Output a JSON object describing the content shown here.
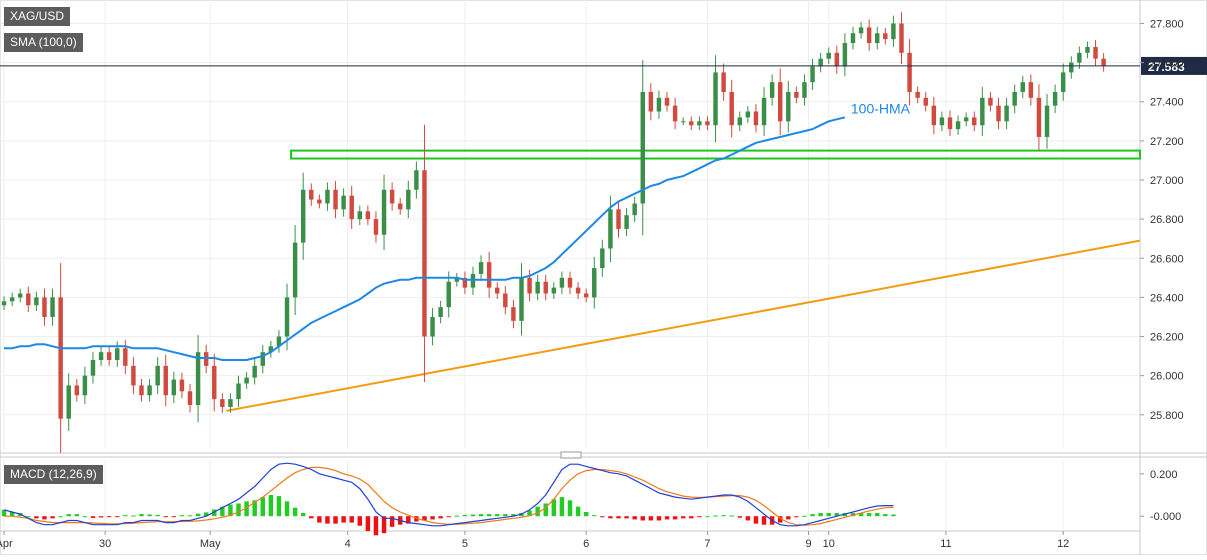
{
  "chart_data": {
    "type": "candlestick",
    "symbol": "XAG/USD",
    "indicator_label": "SMA (100,0)",
    "price_tag": "27.583",
    "last_price": 27.583,
    "price_axis": {
      "range": [
        25.62,
        27.92
      ],
      "ticks": [
        {
          "v": 27.8,
          "label": "27.800"
        },
        {
          "v": 27.6,
          "label": "27.600"
        },
        {
          "v": 27.4,
          "label": "27.400"
        },
        {
          "v": 27.2,
          "label": "27.200"
        },
        {
          "v": 27.0,
          "label": "27.000"
        },
        {
          "v": 26.8,
          "label": "26.800"
        },
        {
          "v": 26.6,
          "label": "26.600"
        },
        {
          "v": 26.4,
          "label": "26.400"
        },
        {
          "v": 26.2,
          "label": "26.200"
        },
        {
          "v": 26.0,
          "label": "26.000"
        },
        {
          "v": 25.8,
          "label": "25.800"
        }
      ]
    },
    "x_axis": {
      "range": [
        0,
        141
      ],
      "labels": [
        {
          "x": 0.5,
          "label": "Apr"
        },
        {
          "x": 13,
          "label": "30"
        },
        {
          "x": 26,
          "label": "May"
        },
        {
          "x": 43,
          "label": "4"
        },
        {
          "x": 57.5,
          "label": "5"
        },
        {
          "x": 72.5,
          "label": "6"
        },
        {
          "x": 87.5,
          "label": "7"
        },
        {
          "x": 100,
          "label": "9"
        },
        {
          "x": 102.5,
          "label": "10"
        },
        {
          "x": 117,
          "label": "11"
        },
        {
          "x": 131.5,
          "label": "12"
        }
      ]
    },
    "close": [
      26.38,
      26.4,
      26.42,
      26.36,
      26.4,
      26.3,
      26.4,
      25.78,
      25.95,
      25.9,
      26.0,
      26.08,
      26.12,
      26.08,
      26.14,
      26.05,
      25.95,
      25.9,
      25.95,
      26.05,
      25.9,
      25.98,
      25.92,
      25.85,
      26.12,
      26.05,
      25.88,
      25.84,
      25.88,
      25.96,
      25.99,
      26.05,
      26.12,
      26.15,
      26.2,
      26.4,
      26.68,
      26.95,
      26.9,
      26.88,
      26.95,
      26.85,
      26.92,
      26.8,
      26.84,
      26.8,
      26.72,
      26.95,
      26.88,
      26.85,
      26.95,
      27.05,
      26.2,
      26.3,
      26.35,
      26.48,
      26.5,
      26.45,
      26.52,
      26.58,
      26.45,
      26.42,
      26.35,
      26.28,
      26.5,
      26.42,
      26.48,
      26.42,
      26.45,
      26.5,
      26.45,
      26.42,
      26.4,
      26.55,
      26.65,
      26.85,
      26.75,
      26.82,
      26.88,
      27.45,
      27.35,
      27.42,
      27.38,
      27.3,
      27.3,
      27.28,
      27.3,
      27.28,
      27.55,
      27.45,
      27.28,
      27.32,
      27.35,
      27.28,
      27.42,
      27.5,
      27.3,
      27.45,
      27.42,
      27.5,
      27.58,
      27.62,
      27.65,
      27.58,
      27.7,
      27.75,
      27.78,
      27.7,
      27.75,
      27.72,
      27.8,
      27.65,
      27.45,
      27.42,
      27.38,
      27.28,
      27.32,
      27.26,
      27.3,
      27.32,
      27.28,
      27.42,
      27.38,
      27.3,
      27.38,
      27.45,
      27.5,
      27.42,
      27.22,
      27.38,
      27.45,
      27.55,
      27.6,
      27.65,
      27.68,
      27.62,
      27.583
    ],
    "hma_100": [
      26.14,
      26.14,
      26.15,
      26.15,
      26.16,
      26.16,
      26.15,
      26.14,
      26.14,
      26.14,
      26.14,
      26.15,
      26.15,
      26.15,
      26.15,
      26.15,
      26.14,
      26.14,
      26.14,
      26.14,
      26.13,
      26.12,
      26.11,
      26.1,
      26.09,
      26.09,
      26.09,
      26.08,
      26.08,
      26.08,
      26.08,
      26.09,
      26.1,
      26.12,
      26.15,
      26.18,
      26.21,
      26.24,
      26.27,
      26.29,
      26.31,
      26.33,
      26.35,
      26.37,
      26.39,
      26.42,
      26.45,
      26.47,
      26.48,
      26.49,
      26.49,
      26.5,
      26.5,
      26.5,
      26.5,
      26.5,
      26.5,
      26.49,
      26.49,
      26.49,
      26.49,
      26.49,
      26.49,
      26.5,
      26.5,
      26.51,
      26.53,
      26.55,
      26.58,
      26.62,
      26.66,
      26.7,
      26.74,
      26.78,
      26.82,
      26.86,
      26.89,
      26.91,
      26.93,
      26.95,
      26.97,
      26.98,
      27.0,
      27.01,
      27.02,
      27.04,
      27.06,
      27.08,
      27.1,
      27.11,
      27.13,
      27.15,
      27.17,
      27.19,
      27.2,
      27.21,
      27.22,
      27.23,
      27.24,
      27.25,
      27.26,
      27.28,
      27.3,
      27.31,
      27.32
    ],
    "support_zone": {
      "from": 36,
      "to": 141,
      "top": 27.14,
      "bottom": 27.12
    },
    "trendline": {
      "x1": 28,
      "y1": 25.82,
      "x2": 141,
      "y2": 26.69
    },
    "hma_label": "100-HMA",
    "macd": {
      "label": "MACD (12,26,9)",
      "range": [
        -0.065,
        0.265
      ],
      "ticks": [
        {
          "v": 0.2,
          "label": "0.200"
        },
        {
          "v": 0.0,
          "label": "-0.000"
        }
      ],
      "macd_line": [
        0.03,
        0.02,
        0.01,
        -0.01,
        -0.03,
        -0.04,
        -0.04,
        -0.03,
        -0.02,
        -0.02,
        -0.03,
        -0.04,
        -0.04,
        -0.04,
        -0.04,
        -0.03,
        -0.03,
        -0.02,
        -0.02,
        -0.02,
        -0.03,
        -0.03,
        -0.02,
        -0.02,
        -0.01,
        0.0,
        0.02,
        0.04,
        0.06,
        0.08,
        0.11,
        0.14,
        0.18,
        0.22,
        0.245,
        0.25,
        0.245,
        0.235,
        0.22,
        0.2,
        0.19,
        0.18,
        0.17,
        0.16,
        0.13,
        0.08,
        0.02,
        -0.01,
        -0.01,
        -0.02,
        -0.03,
        -0.035,
        -0.04,
        -0.045,
        -0.045,
        -0.04,
        -0.035,
        -0.03,
        -0.025,
        -0.02,
        -0.015,
        -0.01,
        -0.005,
        0.0,
        0.01,
        0.03,
        0.06,
        0.1,
        0.16,
        0.22,
        0.245,
        0.245,
        0.235,
        0.225,
        0.215,
        0.205,
        0.2,
        0.19,
        0.17,
        0.15,
        0.13,
        0.11,
        0.1,
        0.09,
        0.085,
        0.08,
        0.085,
        0.09,
        0.095,
        0.1,
        0.1,
        0.09,
        0.07,
        0.04,
        0.01,
        -0.02,
        -0.04,
        -0.045,
        -0.045,
        -0.04,
        -0.03,
        -0.02,
        -0.01,
        0.0,
        0.01,
        0.02,
        0.03,
        0.04,
        0.048,
        0.05,
        0.05
      ],
      "signal_line": [
        0.0,
        0.0,
        -0.005,
        -0.01,
        -0.02,
        -0.025,
        -0.03,
        -0.03,
        -0.03,
        -0.03,
        -0.03,
        -0.032,
        -0.034,
        -0.036,
        -0.036,
        -0.035,
        -0.033,
        -0.03,
        -0.028,
        -0.026,
        -0.026,
        -0.026,
        -0.025,
        -0.024,
        -0.022,
        -0.018,
        -0.012,
        -0.005,
        0.005,
        0.02,
        0.04,
        0.065,
        0.09,
        0.12,
        0.15,
        0.18,
        0.205,
        0.22,
        0.23,
        0.23,
        0.225,
        0.215,
        0.2,
        0.19,
        0.175,
        0.15,
        0.11,
        0.07,
        0.04,
        0.02,
        0.005,
        -0.01,
        -0.02,
        -0.03,
        -0.035,
        -0.038,
        -0.038,
        -0.036,
        -0.033,
        -0.03,
        -0.025,
        -0.02,
        -0.015,
        -0.01,
        -0.005,
        0.003,
        0.015,
        0.04,
        0.08,
        0.13,
        0.17,
        0.2,
        0.215,
        0.22,
        0.22,
        0.215,
        0.21,
        0.2,
        0.185,
        0.17,
        0.15,
        0.13,
        0.115,
        0.105,
        0.095,
        0.09,
        0.088,
        0.09,
        0.092,
        0.095,
        0.097,
        0.097,
        0.09,
        0.075,
        0.05,
        0.02,
        -0.01,
        -0.03,
        -0.04,
        -0.042,
        -0.04,
        -0.035,
        -0.025,
        -0.015,
        -0.005,
        0.005,
        0.015,
        0.025,
        0.033,
        0.04,
        0.042
      ]
    },
    "colors": {
      "up_candle": "#3a8f48",
      "down_candle": "#d04a40",
      "hma_line": "#1e88e5",
      "trendline": "#f39c12",
      "support_zone": "#1fc51f",
      "macd_line": "#1e40d8",
      "signal_line": "#f07a1a",
      "hist_up": "#22cc22",
      "hist_down": "#ee1111",
      "hma_label": "#1e88e5",
      "price_tag_bg": "#1f2a44"
    }
  }
}
